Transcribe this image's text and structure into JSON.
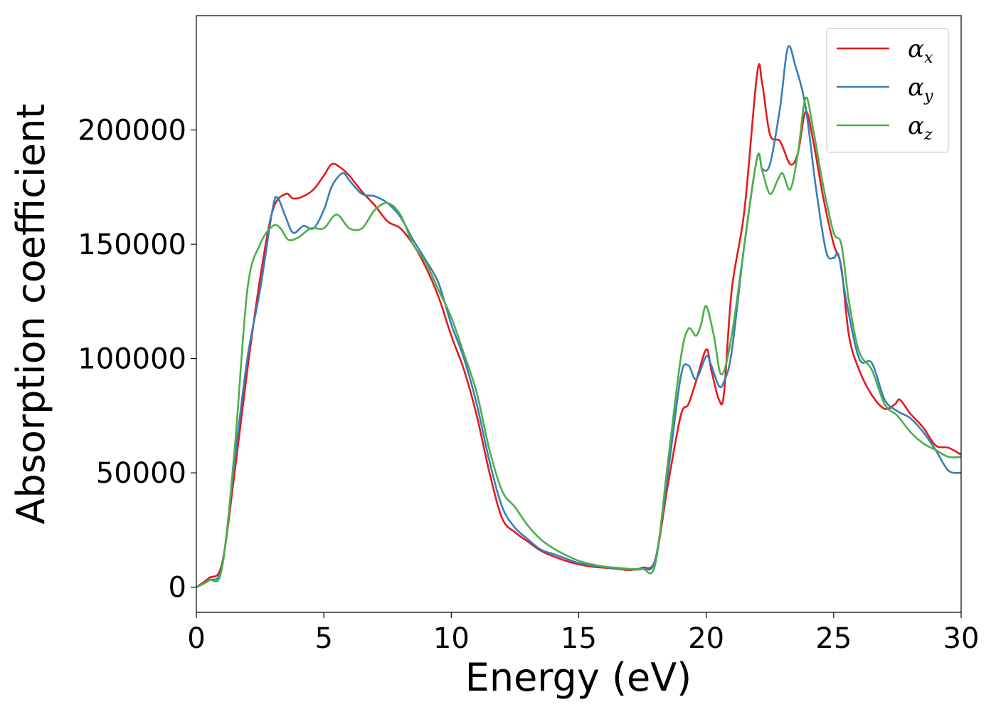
{
  "chart_data": {
    "type": "line",
    "title": "",
    "xlabel": "Energy (eV)",
    "ylabel": "Absorption coefficient",
    "xlim": [
      0,
      30
    ],
    "ylim": [
      -11000,
      250000
    ],
    "xticks": [
      0,
      5,
      10,
      15,
      20,
      25,
      30
    ],
    "yticks": [
      0,
      50000,
      100000,
      150000,
      200000
    ],
    "grid": false,
    "legend_position": "top-right",
    "series": [
      {
        "name": "α",
        "sub": "x",
        "color": "#e41a1c",
        "x": [
          0,
          0.5,
          1,
          1.5,
          2,
          2.5,
          3,
          3.5,
          3.8,
          4.2,
          4.6,
          5,
          5.3,
          5.6,
          6,
          6.5,
          7,
          7.5,
          8,
          8.5,
          9,
          9.5,
          10,
          10.5,
          11,
          11.5,
          12,
          12.5,
          13,
          13.5,
          14,
          14.5,
          15,
          15.5,
          16,
          16.5,
          17,
          17.5,
          18,
          18.5,
          19,
          19.3,
          19.6,
          20,
          20.2,
          20.5,
          20.7,
          21,
          21.5,
          22,
          22.2,
          22.5,
          22.9,
          23.3,
          23.6,
          23.9,
          24.2,
          24.6,
          25,
          25.3,
          25.6,
          26,
          26.5,
          27,
          27.4,
          27.6,
          28,
          28.5,
          29,
          29.5,
          30
        ],
        "y": [
          0,
          4000,
          10000,
          50000,
          95000,
          135000,
          165000,
          172000,
          170000,
          171000,
          174000,
          180000,
          185000,
          184000,
          180000,
          173000,
          167000,
          160000,
          157000,
          150000,
          140000,
          127000,
          110000,
          95000,
          75000,
          50000,
          30000,
          24000,
          20000,
          16000,
          13500,
          11500,
          10000,
          9000,
          8500,
          8000,
          7500,
          8500,
          12000,
          45000,
          75000,
          80000,
          90000,
          104000,
          95000,
          82000,
          85000,
          130000,
          165000,
          225000,
          220000,
          198000,
          195000,
          185000,
          190000,
          208000,
          195000,
          170000,
          150000,
          140000,
          110000,
          95000,
          84000,
          78000,
          80000,
          82000,
          76000,
          70000,
          62000,
          61000,
          58000
        ]
      },
      {
        "name": "α",
        "sub": "y",
        "color": "#377eb8",
        "x": [
          0,
          0.5,
          1,
          1.5,
          2,
          2.5,
          3,
          3.2,
          3.5,
          3.8,
          4.2,
          4.6,
          5,
          5.3,
          5.6,
          5.8,
          6,
          6.5,
          7,
          7.5,
          8,
          8.5,
          9,
          9.5,
          10,
          10.5,
          11,
          11.5,
          12,
          12.5,
          13,
          13.5,
          14,
          14.5,
          15,
          15.5,
          16,
          16.5,
          17,
          17.5,
          18,
          18.5,
          19,
          19.3,
          19.6,
          20,
          20.2,
          20.5,
          20.7,
          21,
          21.5,
          22,
          22.2,
          22.5,
          22.9,
          23.2,
          23.5,
          23.9,
          24.3,
          24.7,
          25,
          25.2,
          25.5,
          26,
          26.5,
          27,
          27.5,
          28,
          28.5,
          29,
          29.5,
          30
        ],
        "y": [
          0,
          3000,
          9000,
          55000,
          100000,
          130000,
          166000,
          170000,
          162000,
          155000,
          158000,
          157000,
          165000,
          175000,
          180000,
          181000,
          178000,
          172000,
          171000,
          168000,
          162000,
          152000,
          143000,
          133000,
          115000,
          100000,
          80000,
          55000,
          35000,
          26000,
          21000,
          16500,
          14500,
          12500,
          10500,
          9500,
          8800,
          8000,
          7800,
          8000,
          12000,
          50000,
          92000,
          97000,
          91000,
          101000,
          97000,
          88000,
          90000,
          103000,
          150000,
          188000,
          183000,
          185000,
          210000,
          236000,
          228000,
          210000,
          175000,
          147000,
          144000,
          145000,
          125000,
          100000,
          98000,
          82000,
          77000,
          74000,
          68000,
          60000,
          51000,
          50000
        ]
      },
      {
        "name": "α",
        "sub": "z",
        "color": "#4daf4a",
        "x": [
          0,
          0.5,
          1,
          1.5,
          2,
          2.5,
          3,
          3.3,
          3.6,
          4,
          4.5,
          5,
          5.5,
          6,
          6.5,
          7,
          7.5,
          8,
          8.5,
          9,
          9.5,
          10,
          10.5,
          11,
          11.5,
          12,
          12.5,
          13,
          13.5,
          14,
          14.5,
          15,
          15.5,
          16,
          16.5,
          17,
          17.5,
          18,
          18.5,
          19,
          19.3,
          19.6,
          19.8,
          20,
          20.3,
          20.6,
          21,
          21.5,
          22,
          22.2,
          22.5,
          22.8,
          23,
          23.3,
          23.6,
          23.9,
          24.2,
          24.6,
          25,
          25.3,
          25.6,
          26,
          26.5,
          27,
          27.5,
          28,
          28.5,
          29,
          29.5,
          30
        ],
        "y": [
          0,
          3000,
          8000,
          60000,
          130000,
          150000,
          158000,
          157000,
          152000,
          153000,
          157000,
          157000,
          163000,
          157000,
          157000,
          165000,
          168000,
          163000,
          150000,
          142000,
          130000,
          118000,
          102000,
          85000,
          60000,
          42000,
          35000,
          27000,
          21000,
          17000,
          14000,
          11500,
          10000,
          9000,
          8500,
          8000,
          8000,
          10000,
          55000,
          100000,
          113000,
          110000,
          115000,
          123000,
          110000,
          93000,
          110000,
          150000,
          188000,
          182000,
          172000,
          178000,
          181000,
          174000,
          190000,
          214000,
          200000,
          175000,
          155000,
          150000,
          125000,
          103000,
          95000,
          80000,
          75000,
          68000,
          63000,
          60000,
          57000,
          57000
        ]
      }
    ]
  }
}
